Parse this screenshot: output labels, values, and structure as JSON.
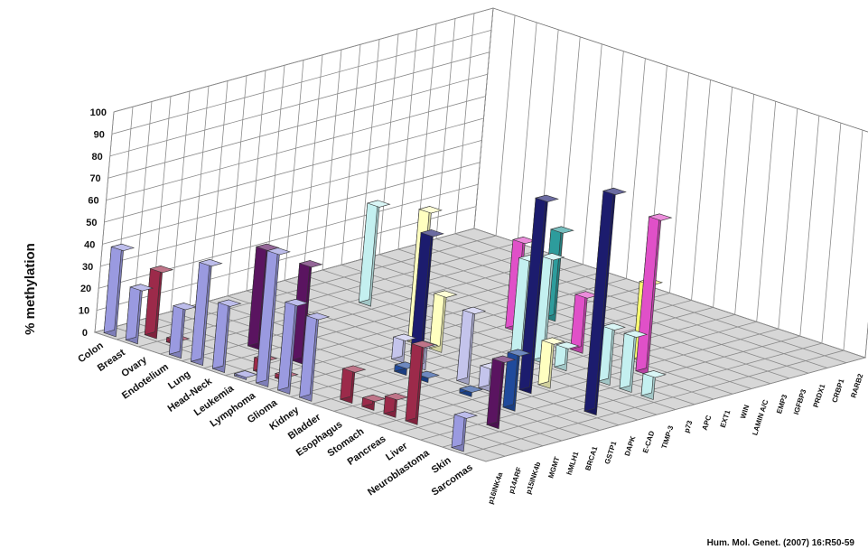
{
  "chart_data": {
    "type": "bar3d",
    "ylabel": "% methylation",
    "ylim": [
      0,
      100
    ],
    "yticks": [
      0,
      10,
      20,
      30,
      40,
      50,
      60,
      70,
      80,
      90,
      100
    ],
    "grid": true,
    "source": "Hum. Mol. Genet. (2007) 16:R50-59",
    "cancers": [
      "Colon",
      "Breast",
      "Ovary",
      "Endotelium",
      "Lung",
      "Head-Neck",
      "Leukemia",
      "Lymphoma",
      "Glioma",
      "Kidney",
      "Bladder",
      "Esophagus",
      "Stomach",
      "Pancreas",
      "Liver",
      "Neuroblastoma",
      "Skin",
      "Sarcomas"
    ],
    "genes": [
      "p16INK4a",
      "p14ARF",
      "p15INK4b",
      "MGMT",
      "hMLH1",
      "BRCA1",
      "GSTP1",
      "DAPK",
      "E-CAD",
      "TIMP-3",
      "p73",
      "APC",
      "EXT1",
      "WIN",
      "LAMIN A/C",
      "EMP3",
      "IGFBP3",
      "PRDX1",
      "CRBP1",
      "RARB2"
    ],
    "gene_colors": [
      "#9a9ae0",
      "#9c2a4a",
      "#ffffff",
      "#5a1460",
      "#ff9090",
      "#204a9c",
      "#c4c4ec",
      "#1c1c6e",
      "#ffffc0",
      "#8e1c1c",
      "#c4f0f0",
      "#4a1a6a",
      "#e050c8",
      "#ffff70",
      "#2d9c9c",
      "#2060d0",
      "#8ad6e6",
      "#60c8f0",
      "#e4f4c0",
      "#c8f0ff"
    ],
    "values": [
      [
        39,
        0,
        0,
        0,
        0,
        0,
        0,
        0,
        0,
        0,
        0,
        0,
        0,
        0,
        0,
        0,
        0,
        0,
        0,
        0
      ],
      [
        24,
        30,
        0,
        0,
        0,
        0,
        0,
        0,
        0,
        0,
        0,
        0,
        0,
        0,
        0,
        0,
        0,
        0,
        0,
        0
      ],
      [
        0,
        2,
        0,
        0,
        0,
        0,
        0,
        0,
        0,
        0,
        0,
        0,
        0,
        0,
        0,
        0,
        0,
        0,
        0,
        0
      ],
      [
        22,
        0,
        0,
        0,
        0,
        0,
        0,
        0,
        0,
        0,
        45,
        0,
        0,
        0,
        0,
        0,
        0,
        0,
        0,
        0
      ],
      [
        45,
        0,
        0,
        45,
        0,
        0,
        0,
        0,
        0,
        0,
        0,
        0,
        0,
        0,
        0,
        0,
        0,
        0,
        0,
        0
      ],
      [
        30,
        0,
        0,
        0,
        15,
        0,
        0,
        0,
        0,
        0,
        0,
        0,
        0,
        0,
        0,
        0,
        0,
        0,
        0,
        0
      ],
      [
        1,
        6,
        0,
        44,
        0,
        0,
        0,
        0,
        0,
        0,
        0,
        0,
        0,
        0,
        0,
        0,
        0,
        0,
        0,
        0
      ],
      [
        60,
        2,
        0,
        0,
        0,
        0,
        0,
        0,
        60,
        0,
        0,
        0,
        0,
        0,
        0,
        0,
        0,
        0,
        0,
        0
      ],
      [
        40,
        0,
        0,
        0,
        0,
        0,
        10,
        55,
        25,
        0,
        0,
        0,
        40,
        0,
        40,
        0,
        0,
        0,
        0,
        0
      ],
      [
        37,
        0,
        0,
        0,
        0,
        3,
        10,
        0,
        0,
        0,
        0,
        0,
        0,
        0,
        0,
        0,
        0,
        0,
        0,
        0
      ],
      [
        0,
        14,
        0,
        0,
        0,
        2,
        0,
        0,
        0,
        0,
        43,
        0,
        0,
        0,
        0,
        0,
        0,
        0,
        0,
        0
      ],
      [
        0,
        4,
        0,
        0,
        0,
        0,
        32,
        0,
        0,
        0,
        47,
        0,
        25,
        0,
        0,
        0,
        0,
        0,
        0,
        0
      ],
      [
        0,
        8,
        0,
        0,
        0,
        2,
        10,
        0,
        0,
        0,
        10,
        0,
        0,
        0,
        0,
        0,
        0,
        0,
        0,
        0
      ],
      [
        0,
        35,
        0,
        0,
        0,
        0,
        0,
        87,
        20,
        0,
        0,
        0,
        0,
        35,
        0,
        0,
        0,
        0,
        0,
        0
      ],
      [
        0,
        0,
        0,
        0,
        0,
        25,
        0,
        0,
        0,
        0,
        25,
        0,
        70,
        0,
        0,
        0,
        0,
        0,
        0,
        0
      ],
      [
        0,
        0,
        0,
        30,
        0,
        0,
        0,
        0,
        0,
        0,
        25,
        0,
        0,
        0,
        0,
        0,
        0,
        0,
        0,
        0
      ],
      [
        15,
        0,
        0,
        0,
        0,
        0,
        0,
        100,
        0,
        0,
        10,
        0,
        0,
        0,
        0,
        0,
        0,
        0,
        0,
        0
      ],
      [
        0,
        0,
        0,
        0,
        0,
        0,
        0,
        0,
        0,
        0,
        0,
        0,
        0,
        0,
        0,
        0,
        0,
        0,
        0,
        0
      ]
    ]
  }
}
